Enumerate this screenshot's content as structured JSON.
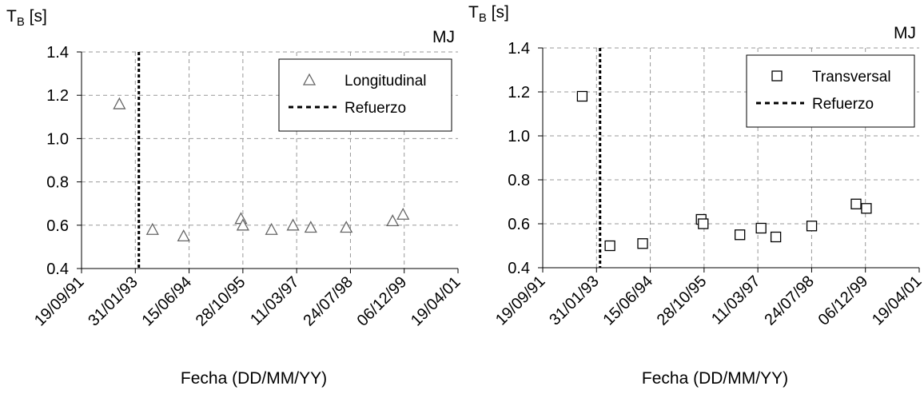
{
  "charts": [
    {
      "ylabel_main": "T",
      "ylabel_sub": "B",
      "ylabel_unit": " [s]",
      "tag": "MJ",
      "xlabel": "Fecha (DD/MM/YY)"
    },
    {
      "ylabel_main": "T",
      "ylabel_sub": "B",
      "ylabel_unit": " [s]",
      "tag": "MJ",
      "xlabel": "Fecha (DD/MM/YY)"
    }
  ],
  "chart_data": [
    {
      "type": "scatter",
      "marker": "triangle",
      "x_ticks": [
        "19/09/91",
        "31/01/93",
        "15/06/94",
        "28/10/95",
        "11/03/97",
        "24/07/98",
        "06/12/99",
        "19/04/01"
      ],
      "xlim": [
        "1991-09-19",
        "2001-04-19"
      ],
      "ylim": [
        0.4,
        1.4
      ],
      "y_ticks": [
        "0.4",
        "0.6",
        "0.8",
        "1.0",
        "1.2",
        "1.4"
      ],
      "grid": true,
      "legend_position": "top-right",
      "series": [
        {
          "name": "Longitudinal",
          "points": [
            {
              "x": "1992-09-05",
              "y": 1.16
            },
            {
              "x": "1993-07-10",
              "y": 0.58
            },
            {
              "x": "1994-04-25",
              "y": 0.55
            },
            {
              "x": "1995-10-10",
              "y": 0.63
            },
            {
              "x": "1995-10-28",
              "y": 0.6
            },
            {
              "x": "1996-07-20",
              "y": 0.58
            },
            {
              "x": "1997-02-05",
              "y": 0.6
            },
            {
              "x": "1997-07-20",
              "y": 0.59
            },
            {
              "x": "1998-06-15",
              "y": 0.59
            },
            {
              "x": "1999-08-20",
              "y": 0.62
            },
            {
              "x": "1999-11-25",
              "y": 0.65
            }
          ]
        }
      ],
      "reference_line": {
        "name": "Refuerzo",
        "x": "1993-03-05",
        "style": "dotted"
      }
    },
    {
      "type": "scatter",
      "marker": "square",
      "x_ticks": [
        "19/09/91",
        "31/01/93",
        "15/06/94",
        "28/10/95",
        "11/03/97",
        "24/07/98",
        "06/12/99",
        "19/04/01"
      ],
      "xlim": [
        "1991-09-19",
        "2001-04-19"
      ],
      "ylim": [
        0.4,
        1.4
      ],
      "y_ticks": [
        "0.4",
        "0.6",
        "0.8",
        "1.0",
        "1.2",
        "1.4"
      ],
      "grid": true,
      "legend_position": "top-right",
      "series": [
        {
          "name": "Transversal",
          "points": [
            {
              "x": "1992-09-20",
              "y": 1.18
            },
            {
              "x": "1993-06-05",
              "y": 0.5
            },
            {
              "x": "1994-04-05",
              "y": 0.51
            },
            {
              "x": "1995-10-01",
              "y": 0.62
            },
            {
              "x": "1995-10-20",
              "y": 0.6
            },
            {
              "x": "1996-09-25",
              "y": 0.55
            },
            {
              "x": "1997-04-10",
              "y": 0.58
            },
            {
              "x": "1997-08-25",
              "y": 0.54
            },
            {
              "x": "1998-07-25",
              "y": 0.59
            },
            {
              "x": "1999-09-10",
              "y": 0.69
            },
            {
              "x": "1999-12-15",
              "y": 0.67
            }
          ]
        }
      ],
      "reference_line": {
        "name": "Refuerzo",
        "x": "1993-03-05",
        "style": "dotted"
      }
    }
  ]
}
